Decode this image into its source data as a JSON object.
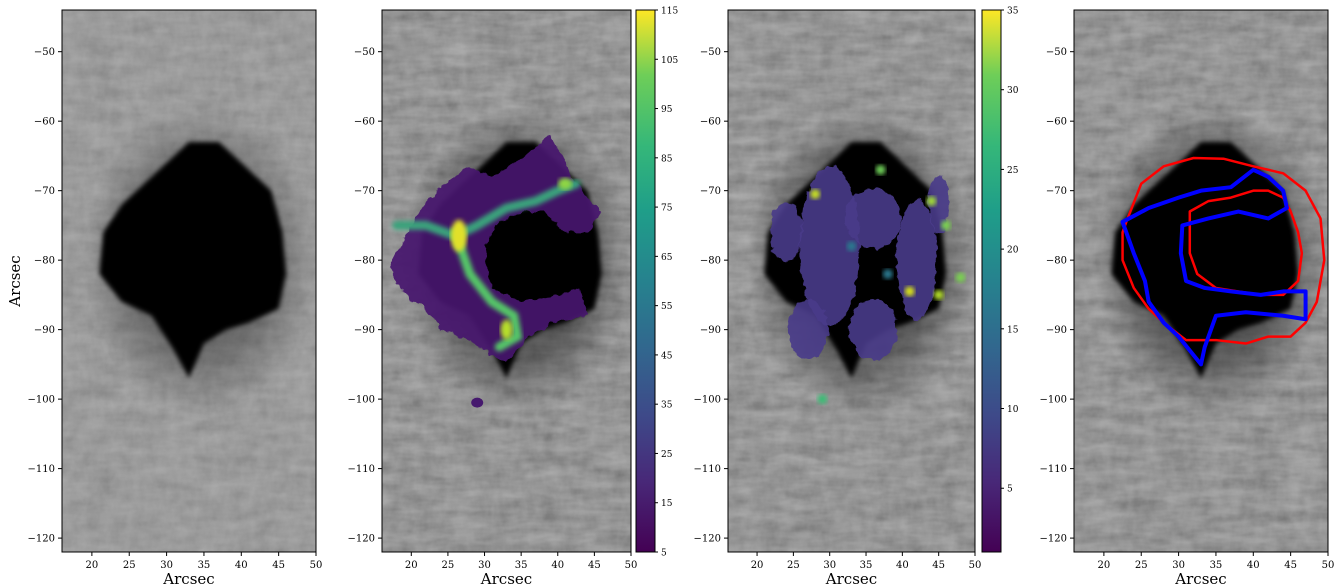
{
  "chart_data": [
    {
      "type": "heatmap",
      "panel": 1,
      "description": "Grayscale continuum image of a sunspot",
      "xlabel": "Arcsec",
      "ylabel": "Arcsec",
      "xlim": [
        16,
        50
      ],
      "ylim": [
        -122,
        -44
      ],
      "xticks": [
        20,
        25,
        30,
        35,
        40,
        45,
        50
      ],
      "yticks": [
        -50,
        -60,
        -70,
        -80,
        -90,
        -100,
        -110,
        -120
      ]
    },
    {
      "type": "heatmap",
      "panel": 2,
      "xlabel": "Arcsec",
      "ylabel": "",
      "xlim": [
        16,
        50
      ],
      "ylim": [
        -122,
        -44
      ],
      "xticks": [
        20,
        25,
        30,
        35,
        40,
        45,
        50
      ],
      "yticks": [
        -50,
        -60,
        -70,
        -80,
        -90,
        -100,
        -110,
        -120
      ],
      "colormap": "viridis",
      "colorbar": {
        "min": 5,
        "max": 115,
        "ticks": [
          5,
          15,
          25,
          35,
          45,
          55,
          65,
          75,
          85,
          95,
          105,
          115
        ]
      }
    },
    {
      "type": "heatmap",
      "panel": 3,
      "xlabel": "Arcsec",
      "ylabel": "",
      "xlim": [
        16,
        50
      ],
      "ylim": [
        -122,
        -44
      ],
      "xticks": [
        20,
        25,
        30,
        35,
        40,
        45,
        50
      ],
      "yticks": [
        -50,
        -60,
        -70,
        -80,
        -90,
        -100,
        -110,
        -120
      ],
      "colormap": "viridis",
      "colorbar": {
        "min": 1,
        "max": 35,
        "ticks": [
          5,
          10,
          15,
          20,
          25,
          30,
          35
        ]
      }
    },
    {
      "type": "heatmap",
      "panel": 4,
      "xlabel": "Arcsec",
      "ylabel": "",
      "xlim": [
        16,
        50
      ],
      "ylim": [
        -122,
        -44
      ],
      "xticks": [
        20,
        25,
        30,
        35,
        40,
        45,
        50
      ],
      "yticks": [
        -50,
        -60,
        -70,
        -80,
        -90,
        -100,
        -110,
        -120
      ],
      "contours": [
        {
          "color": "#ff0000",
          "description": "outer penumbra boundary",
          "points": [
            [
              23,
              -74.5
            ],
            [
              25,
              -69
            ],
            [
              28,
              -66.5
            ],
            [
              32,
              -65.3
            ],
            [
              36,
              -65.4
            ],
            [
              40,
              -66.5
            ],
            [
              44,
              -67.5
            ],
            [
              47,
              -70
            ],
            [
              49,
              -74
            ],
            [
              49.5,
              -80
            ],
            [
              48.5,
              -86
            ],
            [
              47,
              -89
            ],
            [
              45,
              -91
            ],
            [
              42,
              -91
            ],
            [
              39,
              -92
            ],
            [
              35,
              -91.5
            ],
            [
              31,
              -91.5
            ],
            [
              28,
              -89
            ],
            [
              26,
              -87
            ],
            [
              24,
              -84
            ],
            [
              22.5,
              -80
            ],
            [
              22.5,
              -76
            ],
            [
              23,
              -74.5
            ]
          ]
        },
        {
          "color": "#ff0000",
          "description": "inner umbra boundary",
          "points": [
            [
              31.5,
              -73
            ],
            [
              34,
              -71.5
            ],
            [
              37,
              -71
            ],
            [
              40,
              -70
            ],
            [
              42,
              -70
            ],
            [
              44,
              -71
            ],
            [
              45,
              -73
            ],
            [
              46,
              -76
            ],
            [
              46.5,
              -79
            ],
            [
              46,
              -83
            ],
            [
              44,
              -85
            ],
            [
              41,
              -85
            ],
            [
              38,
              -84.5
            ],
            [
              35,
              -84
            ],
            [
              32.5,
              -82
            ],
            [
              31.5,
              -79
            ],
            [
              31.5,
              -73
            ]
          ]
        },
        {
          "color": "#0000ff",
          "description": "region boundary",
          "points": [
            [
              22.5,
              -74.5
            ],
            [
              26,
              -72.5
            ],
            [
              30,
              -71
            ],
            [
              33,
              -70
            ],
            [
              37,
              -69.5
            ],
            [
              40,
              -67
            ],
            [
              42,
              -68
            ],
            [
              44,
              -70
            ],
            [
              44.5,
              -72.5
            ],
            [
              42,
              -74
            ],
            [
              38,
              -73
            ],
            [
              34,
              -74
            ],
            [
              30.5,
              -75
            ],
            [
              30.3,
              -79
            ],
            [
              31,
              -83
            ],
            [
              33.5,
              -84
            ],
            [
              37,
              -84.5
            ],
            [
              41,
              -85
            ],
            [
              44,
              -84.5
            ],
            [
              47,
              -84.5
            ],
            [
              47,
              -88.5
            ],
            [
              44,
              -88
            ],
            [
              39,
              -87.5
            ],
            [
              35,
              -88
            ],
            [
              33.5,
              -92.5
            ],
            [
              33,
              -95
            ],
            [
              31.5,
              -93
            ],
            [
              30,
              -91
            ],
            [
              28,
              -89
            ],
            [
              26,
              -86
            ],
            [
              25.5,
              -83
            ],
            [
              24,
              -79
            ],
            [
              22.5,
              -74.5
            ]
          ]
        }
      ]
    }
  ]
}
